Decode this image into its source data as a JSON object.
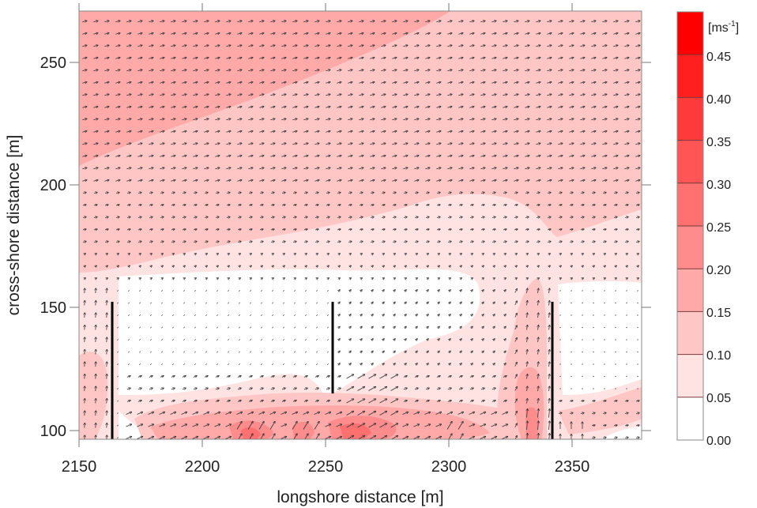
{
  "chart_data": {
    "type": "heatmap",
    "subtype": "filled contour with velocity vectors (quiver)",
    "title": "",
    "xlabel": "longshore distance [m]",
    "ylabel": "cross-shore distance [m]",
    "xlim": [
      2150,
      2378
    ],
    "ylim": [
      96,
      271
    ],
    "x_ticks": [
      2150,
      2200,
      2250,
      2300,
      2350
    ],
    "y_ticks": [
      100,
      150,
      200,
      250
    ],
    "grid": false,
    "colorbar": {
      "unit_label": "[ms-1]",
      "unit_base": "[ms",
      "unit_exp": "-1",
      "unit_close": "]",
      "levels": [
        0.0,
        0.05,
        0.1,
        0.15,
        0.2,
        0.25,
        0.3,
        0.35,
        0.4,
        0.45
      ],
      "level_labels": [
        "0.00",
        "0.05",
        "0.10",
        "0.15",
        "0.20",
        "0.25",
        "0.30",
        "0.35",
        "0.40",
        "0.45"
      ],
      "colors": [
        "#ffffff",
        "#ffe3e3",
        "#ffc6c6",
        "#ffa9a9",
        "#ff8c8c",
        "#ff7070",
        "#ff5555",
        "#ff3a3a",
        "#ff1f1f",
        "#ff0000"
      ],
      "position": "right"
    },
    "groins": [
      {
        "x": 2163.5,
        "y_start": 96,
        "y_end": 152
      },
      {
        "x": 2253.5,
        "y_start": 114,
        "y_end": 152
      },
      {
        "x": 2342.5,
        "y_start": 96,
        "y_end": 152
      }
    ],
    "regions": [
      {
        "description": "offshore band y>205 near x 2150-2230",
        "speed_range": [
          0.2,
          0.25
        ]
      },
      {
        "description": "offshore band y 170-270 broad",
        "speed_range": [
          0.15,
          0.2
        ]
      },
      {
        "description": "mid band y 150-190",
        "speed_range": [
          0.05,
          0.15
        ]
      },
      {
        "description": "groin bays y 115-150",
        "speed_range": [
          0.0,
          0.05
        ]
      },
      {
        "description": "nearshore jet y 100-115, x 2215-2310",
        "speed_range": [
          0.2,
          0.35
        ]
      },
      {
        "description": "rip current along groin at x~2337",
        "speed_range": [
          0.15,
          0.3
        ]
      }
    ],
    "vector_field": {
      "dominant_direction_offshore": "east (longshore, slightly north-east)",
      "nearshore_jet_direction": "east / north-east",
      "rip_direction_near_x_2337": "north (offshore)",
      "grid_spacing_m": [
        4.5,
        5
      ]
    }
  }
}
